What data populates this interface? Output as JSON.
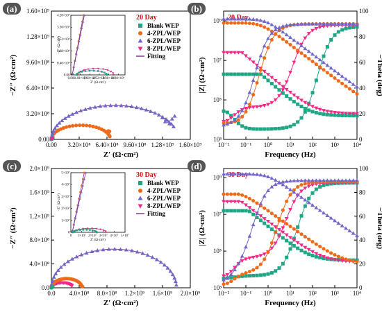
{
  "colors": {
    "blank": "#20a585",
    "zpl4": "#ee6a18",
    "zpl6": "#7167c9",
    "zpl8": "#ee2a87",
    "fit": "#7a2a8a",
    "day": "#cc1111",
    "label_bg": "#555555"
  },
  "legend": {
    "blank": "Blank WEP",
    "zpl4": "4-ZPL/WEP",
    "zpl6": "6-ZPL/WEP",
    "zpl8": "8-ZPL/WEP",
    "fit": "Fitting"
  },
  "chart_data": [
    {
      "id": "a",
      "panel_label": "(a)",
      "type": "scatter",
      "title": "20 Day",
      "xlabel": "Z′ (Ω·cm²)",
      "ylabel": "−Z″ (Ω·cm²)",
      "xlim": [
        0,
        1600000000.0
      ],
      "ylim": [
        0,
        1600000000.0
      ],
      "xtick_values": [
        0,
        320000000.0,
        640000000.0,
        960000000.0,
        1280000000.0,
        1600000000.0
      ],
      "xtick_labels": [
        "0.00",
        "3.20×10⁸",
        "6.40×10⁸",
        "9.60×10⁸",
        "1.28×10⁹",
        "1.60×10⁹"
      ],
      "ytick_values": [
        0,
        320000000.0,
        640000000.0,
        960000000.0,
        1280000000.0,
        1600000000.0
      ],
      "ytick_labels": [
        "0.00",
        "3.20×10⁸",
        "6.40×10⁸",
        "9.60×10⁸",
        "1.28×10⁹",
        "1.60×10⁹"
      ],
      "legend_position": "top-right",
      "series": {
        "zpl6": {
          "rs": 1000000.0,
          "r": 730000000.0,
          "arc_h": 0.58,
          "end_theta_deg": 22,
          "tail": [
            [
              1280000000.0,
              270000000.0
            ],
            [
              1310000000.0,
              220000000.0
            ],
            [
              1330000000.0,
              240000000.0
            ],
            [
              1360000000.0,
              195000000.0
            ],
            [
              1390000000.0,
              255000000.0
            ],
            [
              1420000000.0,
              290000000.0
            ]
          ]
        },
        "zpl4": {
          "rs": 500000.0,
          "r": 340000000.0,
          "arc_h": 0.52,
          "end_theta_deg": 12,
          "tail": [
            [
              655000000.0,
              105000000.0
            ],
            [
              670000000.0,
              100000000.0
            ]
          ]
        }
      },
      "inset": {
        "xlim": [
          0,
          4800000.0
        ],
        "ylim": [
          0,
          4200000.0
        ],
        "xtick_values": [
          0,
          840000.0,
          1680000.0,
          2520000.0,
          3360000.0,
          4200000.0
        ],
        "xtick_labels": [
          "0.00",
          "8.40×10⁵",
          "1.68×10⁶",
          "2.52×10⁶",
          "3.36×10⁶",
          "4.20×10⁶"
        ],
        "ytick_values": [
          0,
          840000.0,
          1680000.0,
          2520000.0,
          3360000.0,
          4200000.0
        ],
        "ytick_labels": [
          "0.00",
          "8.40×10⁵",
          "1.68×10⁶",
          "2.52×10⁶",
          "3.36×10⁶",
          "4.20×10⁶"
        ],
        "xlabel": "Z′ (Ω·cm²)",
        "ylabel": "−Z″ (Ω·cm²)",
        "blank": {
          "rs": 500000.0,
          "r": 1350000.0,
          "arc_h": 0.22
        },
        "zpl8": {
          "rs": 600000.0,
          "r": 1600000.0,
          "arc_h": 0.28
        },
        "zpl4_slope": 4.2,
        "zpl6_slope": 3.9
      }
    },
    {
      "id": "b",
      "panel_label": "(b)",
      "type": "line",
      "title": "20 Day",
      "xlabel": "Frequency (Hz)",
      "ylabel": "|Z| (Ω·cm²)",
      "ylabel_right": "−Theta (deg)",
      "xlim_log10": [
        -2,
        4
      ],
      "ylim_log10": [
        3,
        9.5
      ],
      "y2lim": [
        0,
        100
      ],
      "xtick_labels": [
        "10⁻²",
        "10⁻¹",
        "10⁰",
        "10¹",
        "10²",
        "10³",
        "10⁴"
      ],
      "ytick_log10": [
        3,
        5,
        7,
        9
      ],
      "ytick_labels": [
        "10³",
        "10⁵",
        "10⁷",
        "10⁹"
      ],
      "y2tick_values": [
        0,
        20,
        40,
        60,
        80,
        100
      ],
      "y2tick_labels": [
        "0",
        "20",
        "40",
        "60",
        "80",
        "100"
      ],
      "series": {
        "blank": {
          "log_r": 6.3,
          "log_rs": 4.2,
          "phase_low": 22,
          "phase_mid": 8,
          "phase_high": 88
        },
        "zpl4": {
          "log_r": 8.9,
          "log_rs": 4.4,
          "phase_low": 12,
          "phase_mid": 10,
          "phase_high": 90
        },
        "zpl6": {
          "log_r": 9.1,
          "log_rs": 4.6,
          "phase_low": 10,
          "phase_mid": 10,
          "phase_high": 90
        },
        "zpl8": {
          "log_r": 7.4,
          "log_rs": 4.3,
          "phase_low": 14,
          "phase_mid": 25,
          "phase_high": 89
        }
      }
    },
    {
      "id": "c",
      "panel_label": "(c)",
      "type": "scatter",
      "title": "30 Day",
      "xlabel": "Z′ (Ω·cm²)",
      "ylabel": "−Z″ (Ω·cm²)",
      "xlim": [
        0,
        2000000000.0
      ],
      "ylim": [
        0,
        2000000000.0
      ],
      "xtick_values": [
        0,
        400000000.0,
        800000000.0,
        1200000000.0,
        1600000000.0,
        2000000000.0
      ],
      "xtick_labels": [
        "0.0",
        "4.0×10⁸",
        "8.0×10⁸",
        "1.2×10⁹",
        "1.6×10⁹",
        "2.0×10⁹"
      ],
      "ytick_values": [
        0,
        400000000.0,
        800000000.0,
        1200000000.0,
        1600000000.0,
        2000000000.0
      ],
      "ytick_labels": [
        "0.0",
        "4.0×10⁸",
        "8.0×10⁸",
        "1.2×10⁹",
        "1.6×10⁹",
        "2.0×10⁹"
      ],
      "legend_position": "top-right",
      "series": {
        "zpl6": {
          "rs": 1000000.0,
          "r": 900000000.0,
          "arc_h": 0.72,
          "end_theta_deg": 4,
          "tail": []
        },
        "zpl4": {
          "rs": 500000.0,
          "r": 220000000.0,
          "arc_h": 0.7,
          "end_theta_deg": 10,
          "tail": [
            [
              450000000.0,
              20000000.0
            ]
          ]
        },
        "zpl8": {
          "rs": 500000.0,
          "r": 155000000.0,
          "arc_h": 0.55,
          "end_theta_deg": 25,
          "tail": []
        }
      },
      "inset": {
        "xlim": [
          0,
          50000000.0
        ],
        "ylim": [
          0,
          50000000.0
        ],
        "xtick_values": [
          0,
          10000000.0,
          20000000.0,
          30000000.0,
          40000000.0,
          50000000.0
        ],
        "xtick_labels": [
          "0",
          "1×10⁷",
          "2×10⁷",
          "3×10⁷",
          "4×10⁷",
          "5×10⁷"
        ],
        "ytick_values": [
          0,
          10000000.0,
          20000000.0,
          30000000.0,
          40000000.0,
          50000000.0
        ],
        "ytick_labels": [
          "0",
          "1×10⁷",
          "2×10⁷",
          "3×10⁷",
          "4×10⁷",
          "5×10⁷"
        ],
        "xlabel": "Z′ (Ω·cm²)",
        "ylabel": "−Z″ (Ω·cm²)",
        "blank": {
          "rs": 2000000.0,
          "r": 11000000.0,
          "arc_h": 0.2
        },
        "zpl8": {
          "rs": 2500000.0,
          "r": 15000000.0,
          "arc_h": 0.22
        },
        "zpl4_slope": 4.5,
        "zpl6_slope": 4.0
      }
    },
    {
      "id": "d",
      "panel_label": "(d)",
      "type": "line",
      "title": "30 Day",
      "xlabel": "Frequency (Hz)",
      "ylabel": "|Z| (Ω·cm²)",
      "ylabel_right": "−Theta (deg)",
      "xlim_log10": [
        -2,
        4
      ],
      "ylim_log10": [
        3,
        9.5
      ],
      "y2lim": [
        0,
        100
      ],
      "xtick_labels": [
        "10⁻²",
        "10⁻¹",
        "10⁰",
        "10¹",
        "10²",
        "10³",
        "10⁴"
      ],
      "ytick_log10": [
        3,
        5,
        7,
        9
      ],
      "ytick_labels": [
        "10³",
        "10⁵",
        "10⁷",
        "10⁹"
      ],
      "y2tick_values": [
        0,
        20,
        40,
        60,
        80,
        100
      ],
      "y2tick_labels": [
        "0",
        "20",
        "40",
        "60",
        "80",
        "100"
      ],
      "series": {
        "blank": {
          "log_r": 7.2,
          "log_rs": 4.5,
          "phase_low": 8,
          "phase_mid": 10,
          "phase_high": 88
        },
        "zpl4": {
          "log_r": 8.1,
          "log_rs": 4.3,
          "phase_low": 3,
          "phase_mid": 12,
          "phase_high": 89
        },
        "zpl6": {
          "log_r": 9.2,
          "log_rs": 4.7,
          "phase_low": 5,
          "phase_mid": 12,
          "phase_high": 90
        },
        "zpl8": {
          "log_r": 7.7,
          "log_rs": 4.4,
          "phase_low": 10,
          "phase_mid": 25,
          "phase_high": 88
        }
      }
    }
  ]
}
